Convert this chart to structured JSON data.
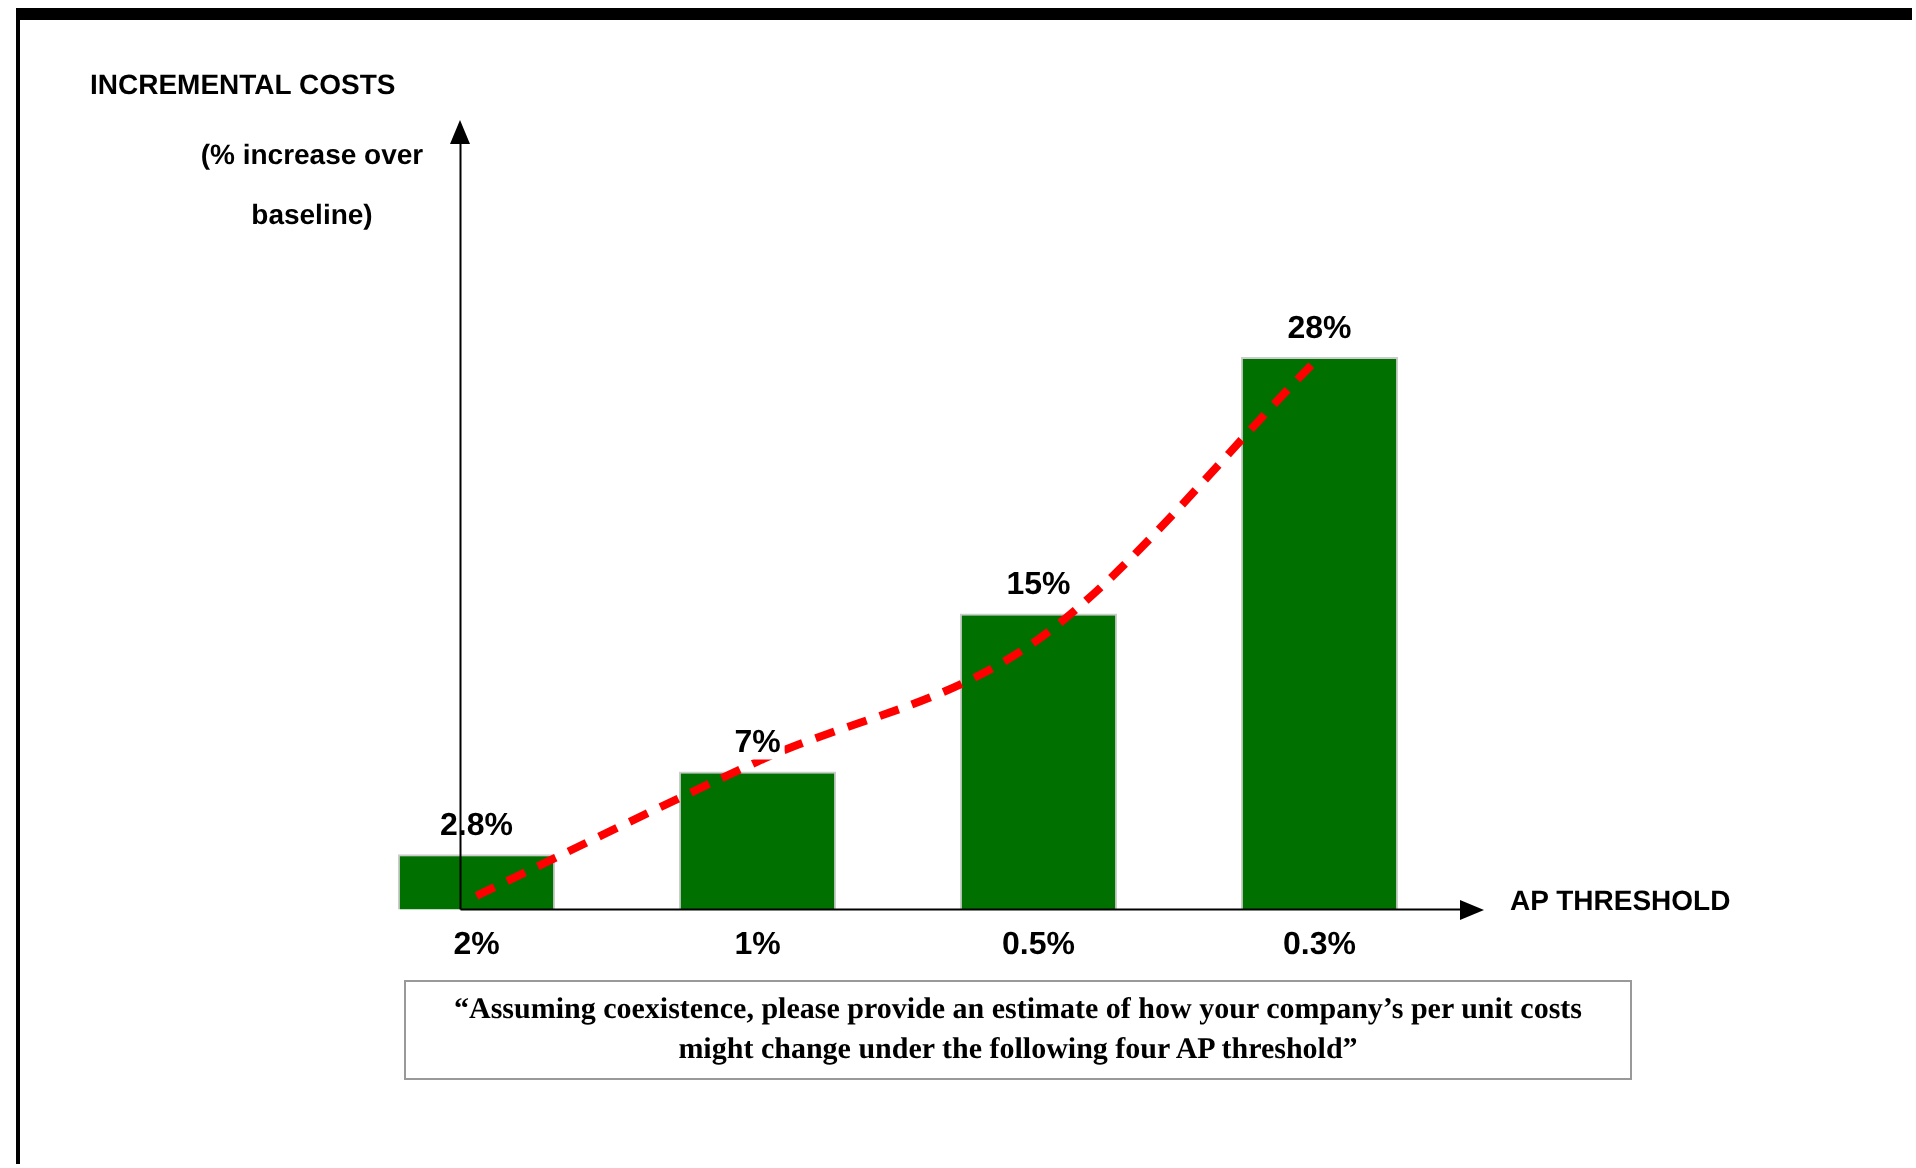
{
  "chart_data": {
    "type": "bar",
    "title": "INCREMENTAL COSTS",
    "ylabel": "(% increase over baseline)",
    "xlabel": "AP THRESHOLD",
    "categories": [
      "2%",
      "1%",
      "0.5%",
      "0.3%"
    ],
    "series": [
      {
        "color": "#007000",
        "values": [
          2.8,
          7,
          15,
          28
        ],
        "value_labels": [
          "2.8%",
          "7%",
          "15%",
          "28%"
        ]
      },
      {
        "type": "line",
        "color": "#ff0000",
        "line_style": "dashed",
        "marker": "none",
        "values": [
          0.7,
          7.5,
          13.7,
          28
        ]
      }
    ],
    "tick_labels": "x",
    "grid": false,
    "legend": false,
    "annotations": [
      "“Assuming coexistence, please provide an estimate of how your company’s per unit costs might change under the following four AP threshold”"
    ]
  }
}
